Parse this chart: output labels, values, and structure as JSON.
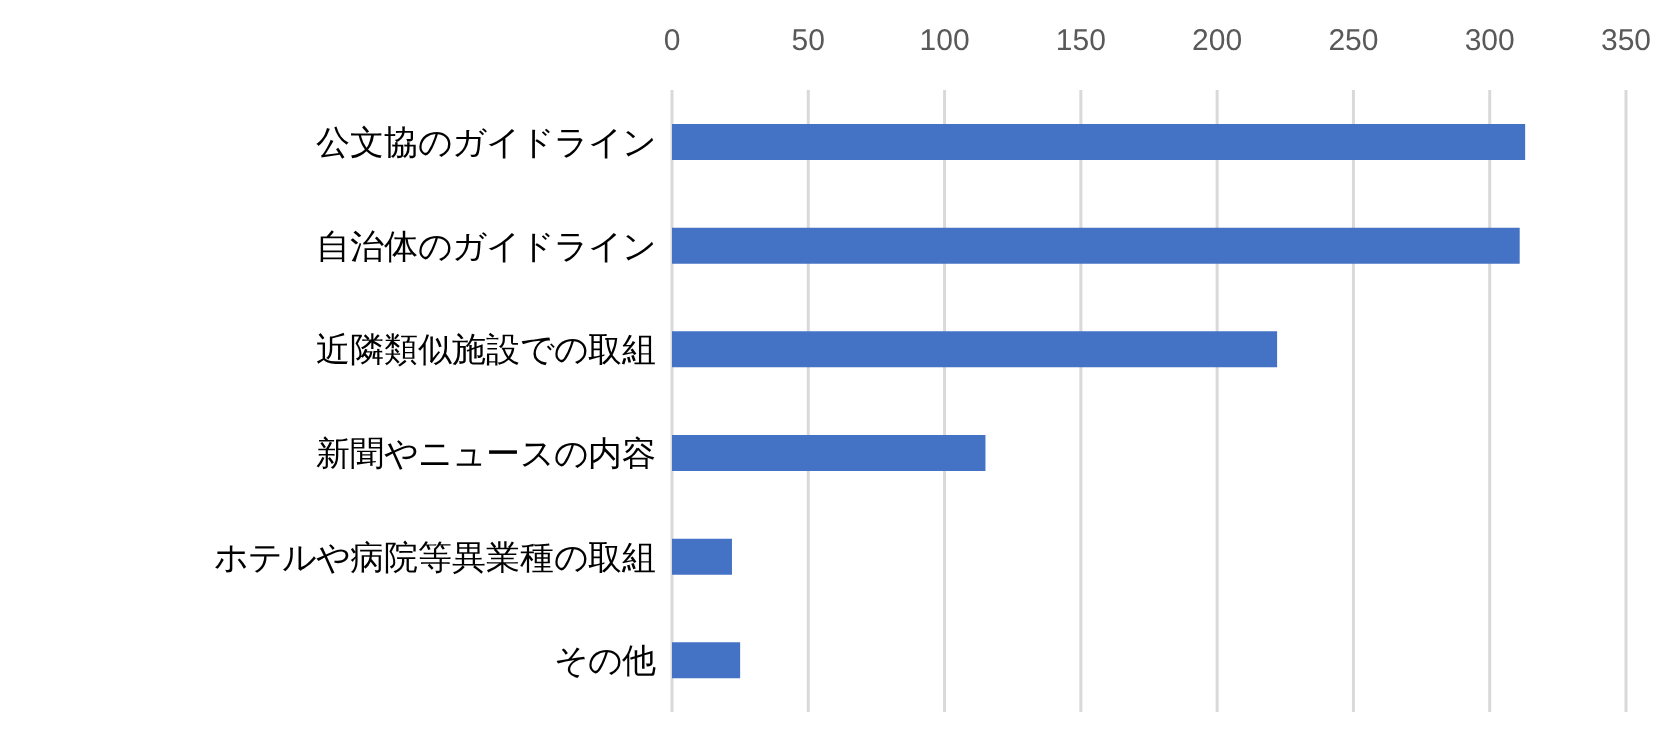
{
  "chart_data": {
    "type": "bar",
    "orientation": "horizontal",
    "categories": [
      "公文協のガイドライン",
      "自治体のガイドライン",
      "近隣類似施設での取組",
      "新聞やニュースの内容",
      "ホテルや病院等異業種の取組",
      "その他"
    ],
    "values": [
      313,
      311,
      222,
      115,
      22,
      25
    ],
    "color": "#4472c4",
    "xlim": [
      0,
      350
    ],
    "xticks": [
      0,
      50,
      100,
      150,
      200,
      250,
      300,
      350
    ],
    "grid": "x"
  }
}
